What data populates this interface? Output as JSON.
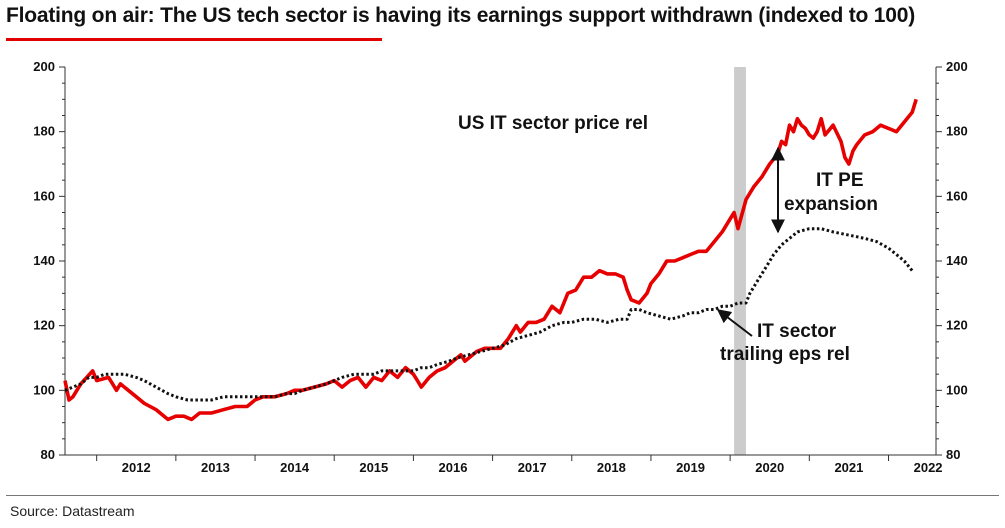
{
  "title": "Floating on air: The US tech sector is having its earnings support withdrawn (indexed to 100)",
  "source": "Source: Datastream",
  "colors": {
    "price": "#e60000",
    "eps": "#111111",
    "shade": "#cccccc",
    "accent": "#e10000"
  },
  "chart_data": {
    "type": "line",
    "title": "Floating on air: The US tech sector is having its earnings support withdrawn (indexed to 100)",
    "xlabel": "",
    "ylabel": "",
    "ylim": [
      80,
      200
    ],
    "xlim": [
      2011.6,
      2022.6
    ],
    "yticks_left": [
      "80",
      "100",
      "120",
      "140",
      "160",
      "180",
      "200"
    ],
    "yticks_right": [
      "80",
      "100",
      "120",
      "140",
      "160",
      "180",
      "200"
    ],
    "xtick_labels": [
      "2012",
      "2013",
      "2014",
      "2015",
      "2016",
      "2017",
      "2018",
      "2019",
      "2020",
      "2021",
      "2022"
    ],
    "shaded_region": [
      2020.05,
      2020.2
    ],
    "series": [
      {
        "name": "US IT sector price rel",
        "style": "solid",
        "points": [
          [
            2011.6,
            103
          ],
          [
            2011.65,
            97
          ],
          [
            2011.7,
            98
          ],
          [
            2011.8,
            102
          ],
          [
            2011.95,
            106
          ],
          [
            2012.0,
            103
          ],
          [
            2012.15,
            104
          ],
          [
            2012.25,
            100
          ],
          [
            2012.3,
            102
          ],
          [
            2012.4,
            100
          ],
          [
            2012.5,
            98
          ],
          [
            2012.6,
            96
          ],
          [
            2012.75,
            94
          ],
          [
            2012.9,
            91
          ],
          [
            2013.0,
            92
          ],
          [
            2013.1,
            92
          ],
          [
            2013.2,
            91
          ],
          [
            2013.3,
            93
          ],
          [
            2013.45,
            93
          ],
          [
            2013.6,
            94
          ],
          [
            2013.75,
            95
          ],
          [
            2013.9,
            95
          ],
          [
            2014.0,
            97
          ],
          [
            2014.1,
            98
          ],
          [
            2014.25,
            98
          ],
          [
            2014.4,
            99
          ],
          [
            2014.5,
            100
          ],
          [
            2014.6,
            100
          ],
          [
            2014.75,
            101
          ],
          [
            2014.9,
            102
          ],
          [
            2015.0,
            103
          ],
          [
            2015.1,
            101
          ],
          [
            2015.2,
            103
          ],
          [
            2015.3,
            104
          ],
          [
            2015.4,
            101
          ],
          [
            2015.5,
            104
          ],
          [
            2015.6,
            103
          ],
          [
            2015.7,
            106
          ],
          [
            2015.8,
            104
          ],
          [
            2015.9,
            107
          ],
          [
            2016.0,
            105
          ],
          [
            2016.05,
            103
          ],
          [
            2016.1,
            101
          ],
          [
            2016.2,
            104
          ],
          [
            2016.3,
            106
          ],
          [
            2016.4,
            107
          ],
          [
            2016.5,
            109
          ],
          [
            2016.6,
            111
          ],
          [
            2016.65,
            109
          ],
          [
            2016.7,
            110
          ],
          [
            2016.8,
            112
          ],
          [
            2016.9,
            113
          ],
          [
            2017.0,
            113
          ],
          [
            2017.1,
            113
          ],
          [
            2017.2,
            116
          ],
          [
            2017.3,
            120
          ],
          [
            2017.35,
            118
          ],
          [
            2017.45,
            121
          ],
          [
            2017.55,
            121
          ],
          [
            2017.65,
            122
          ],
          [
            2017.75,
            126
          ],
          [
            2017.85,
            124
          ],
          [
            2017.95,
            130
          ],
          [
            2018.05,
            131
          ],
          [
            2018.15,
            135
          ],
          [
            2018.25,
            135
          ],
          [
            2018.35,
            137
          ],
          [
            2018.45,
            136
          ],
          [
            2018.55,
            136
          ],
          [
            2018.65,
            135
          ],
          [
            2018.7,
            131
          ],
          [
            2018.75,
            128
          ],
          [
            2018.85,
            127
          ],
          [
            2018.95,
            130
          ],
          [
            2019.0,
            133
          ],
          [
            2019.1,
            136
          ],
          [
            2019.2,
            140
          ],
          [
            2019.3,
            140
          ],
          [
            2019.4,
            141
          ],
          [
            2019.5,
            142
          ],
          [
            2019.6,
            143
          ],
          [
            2019.7,
            143
          ],
          [
            2019.8,
            146
          ],
          [
            2019.9,
            149
          ],
          [
            2020.0,
            153
          ],
          [
            2020.05,
            155
          ],
          [
            2020.1,
            150
          ],
          [
            2020.2,
            159
          ],
          [
            2020.3,
            163
          ],
          [
            2020.4,
            166
          ],
          [
            2020.5,
            170
          ],
          [
            2020.6,
            173
          ],
          [
            2020.65,
            177
          ],
          [
            2020.7,
            176
          ],
          [
            2020.75,
            182
          ],
          [
            2020.8,
            180
          ],
          [
            2020.85,
            184
          ],
          [
            2020.9,
            182
          ],
          [
            2020.95,
            181
          ],
          [
            2021.0,
            179
          ],
          [
            2021.05,
            178
          ],
          [
            2021.1,
            180
          ],
          [
            2021.15,
            184
          ],
          [
            2021.2,
            179
          ],
          [
            2021.3,
            182
          ],
          [
            2021.4,
            177
          ],
          [
            2021.45,
            172
          ],
          [
            2021.5,
            170
          ],
          [
            2021.55,
            174
          ],
          [
            2021.6,
            176
          ],
          [
            2021.7,
            179
          ],
          [
            2021.8,
            180
          ],
          [
            2021.9,
            182
          ],
          [
            2022.0,
            181
          ],
          [
            2022.1,
            180
          ],
          [
            2022.2,
            183
          ],
          [
            2022.3,
            186
          ],
          [
            2022.35,
            190
          ]
        ]
      },
      {
        "name": "IT sector trailing eps rel",
        "style": "dotted",
        "points": [
          [
            2011.6,
            100
          ],
          [
            2011.7,
            101
          ],
          [
            2011.8,
            102
          ],
          [
            2011.9,
            104
          ],
          [
            2012.0,
            104
          ],
          [
            2012.1,
            105
          ],
          [
            2012.2,
            105
          ],
          [
            2012.35,
            105
          ],
          [
            2012.5,
            104
          ],
          [
            2012.6,
            103
          ],
          [
            2012.75,
            101
          ],
          [
            2012.9,
            99
          ],
          [
            2013.0,
            98
          ],
          [
            2013.15,
            97
          ],
          [
            2013.3,
            97
          ],
          [
            2013.45,
            97
          ],
          [
            2013.6,
            98
          ],
          [
            2013.75,
            98
          ],
          [
            2013.9,
            98
          ],
          [
            2014.0,
            98
          ],
          [
            2014.1,
            98
          ],
          [
            2014.25,
            98
          ],
          [
            2014.4,
            99
          ],
          [
            2014.5,
            99
          ],
          [
            2014.6,
            100
          ],
          [
            2014.75,
            101
          ],
          [
            2014.9,
            102
          ],
          [
            2015.0,
            103
          ],
          [
            2015.1,
            104
          ],
          [
            2015.25,
            105
          ],
          [
            2015.4,
            105
          ],
          [
            2015.5,
            105
          ],
          [
            2015.6,
            106
          ],
          [
            2015.75,
            106
          ],
          [
            2015.9,
            106
          ],
          [
            2016.0,
            106
          ],
          [
            2016.1,
            107
          ],
          [
            2016.2,
            107
          ],
          [
            2016.3,
            108
          ],
          [
            2016.45,
            109
          ],
          [
            2016.55,
            110
          ],
          [
            2016.7,
            111
          ],
          [
            2016.85,
            112
          ],
          [
            2017.0,
            113
          ],
          [
            2017.15,
            114
          ],
          [
            2017.3,
            116
          ],
          [
            2017.45,
            117
          ],
          [
            2017.6,
            118
          ],
          [
            2017.75,
            120
          ],
          [
            2017.9,
            121
          ],
          [
            2018.0,
            121
          ],
          [
            2018.15,
            122
          ],
          [
            2018.3,
            122
          ],
          [
            2018.45,
            121
          ],
          [
            2018.6,
            122
          ],
          [
            2018.7,
            122
          ],
          [
            2018.75,
            125
          ],
          [
            2018.85,
            125
          ],
          [
            2018.95,
            124
          ],
          [
            2019.1,
            123
          ],
          [
            2019.25,
            122
          ],
          [
            2019.4,
            123
          ],
          [
            2019.5,
            124
          ],
          [
            2019.6,
            124
          ],
          [
            2019.7,
            125
          ],
          [
            2019.8,
            125
          ],
          [
            2019.9,
            126
          ],
          [
            2020.0,
            126
          ],
          [
            2020.1,
            127
          ],
          [
            2020.2,
            127
          ],
          [
            2020.25,
            130
          ],
          [
            2020.35,
            134
          ],
          [
            2020.45,
            138
          ],
          [
            2020.55,
            142
          ],
          [
            2020.65,
            145
          ],
          [
            2020.75,
            147
          ],
          [
            2020.85,
            149
          ],
          [
            2021.0,
            150
          ],
          [
            2021.15,
            150
          ],
          [
            2021.3,
            149
          ],
          [
            2021.5,
            148
          ],
          [
            2021.7,
            147
          ],
          [
            2021.85,
            146
          ],
          [
            2022.0,
            144
          ],
          [
            2022.1,
            142
          ],
          [
            2022.2,
            140
          ],
          [
            2022.3,
            137
          ]
        ]
      }
    ],
    "annotations": [
      {
        "text": "US IT sector price rel"
      },
      {
        "text": "IT PE"
      },
      {
        "text": "expansion"
      },
      {
        "text": "IT sector"
      },
      {
        "text": "trailing eps rel"
      }
    ]
  }
}
